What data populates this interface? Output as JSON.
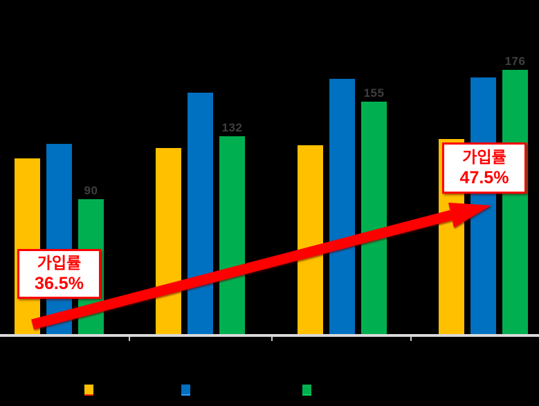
{
  "chart_data": {
    "type": "bar",
    "title": "",
    "xlabel": "",
    "ylabel": "",
    "background_color": "#000000",
    "axis_line_color": "#d9d9d9",
    "data_label_color": "#3f3f3f",
    "grid": false,
    "legend_position": "bottom",
    "categories": [
      "",
      "",
      "",
      ""
    ],
    "series": [
      {
        "name": "series-yellow",
        "color": "#ffc000",
        "labels_visible": false,
        "values": [
          117,
          124,
          126,
          130
        ]
      },
      {
        "name": "series-blue",
        "color": "#0070c0",
        "labels_visible": false,
        "values": [
          127,
          161,
          170,
          171
        ]
      },
      {
        "name": "series-green",
        "color": "#00b050",
        "labels_visible": true,
        "values": [
          90,
          132,
          155,
          176
        ]
      }
    ],
    "value_axis_visible": false,
    "annotations": [
      {
        "name": "callout-left",
        "lines": [
          "가입률",
          "36.5%"
        ],
        "text_color": "#ff0000",
        "border_color": "#ff0000",
        "fill": "#ffffff"
      },
      {
        "name": "callout-right",
        "lines": [
          "가입률",
          "47.5%"
        ],
        "text_color": "#ff0000",
        "border_color": "#ff0000",
        "fill": "#ffffff"
      },
      {
        "name": "trend-arrow",
        "color": "#ff0000",
        "direction": "up-right",
        "from_label": "36.5%",
        "to_label": "47.5%"
      }
    ],
    "legend": {
      "items": [
        {
          "name": "legend-yellow",
          "swatch_color": "#ffc000",
          "underline_color": "#ff2d00"
        },
        {
          "name": "legend-blue",
          "swatch_color": "#0070c0",
          "underline_color": "#2f9bff"
        },
        {
          "name": "legend-green",
          "swatch_color": "#00b050",
          "underline_color": "#00d55e"
        }
      ]
    }
  }
}
